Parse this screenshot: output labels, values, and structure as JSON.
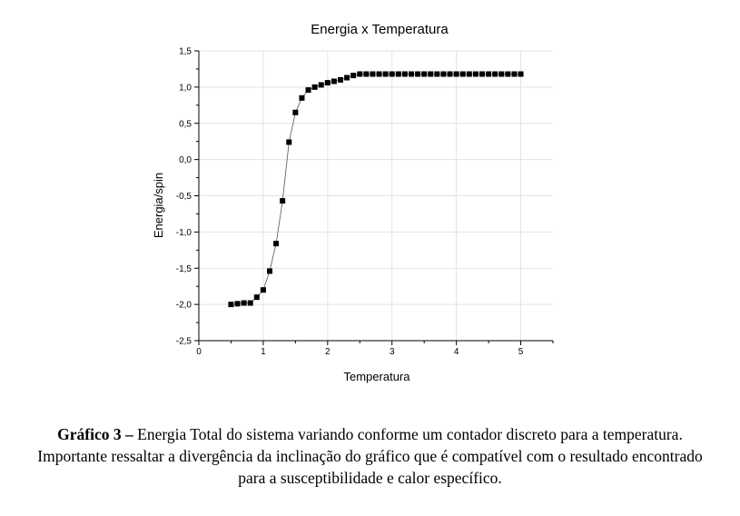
{
  "chart_data": {
    "type": "scatter",
    "title": "Energia x Temperatura",
    "xlabel": "Temperatura",
    "ylabel": "Energia/spin",
    "xlim": [
      0,
      5.5
    ],
    "ylim": [
      -2.5,
      1.5
    ],
    "x_ticks": [
      "0",
      "1",
      "2",
      "3",
      "4",
      "5"
    ],
    "y_ticks": [
      "-2,5",
      "-2,0",
      "-1,5",
      "-1,0",
      "-0,5",
      "0,0",
      "0,5",
      "1,0",
      "1,5"
    ],
    "grid": true,
    "connecting_line": true,
    "marker": "square",
    "series": [
      {
        "x": [
          0.5,
          0.6,
          0.7,
          0.8,
          0.9,
          1.0,
          1.1,
          1.2,
          1.3,
          1.4,
          1.5,
          1.6,
          1.7,
          1.8,
          1.9,
          2.0,
          2.1,
          2.2,
          2.3,
          2.4,
          2.5,
          2.6,
          2.7,
          2.8,
          2.9,
          3.0,
          3.1,
          3.2,
          3.3,
          3.4,
          3.5,
          3.6,
          3.7,
          3.8,
          3.9,
          4.0,
          4.1,
          4.2,
          4.3,
          4.4,
          4.5,
          4.6,
          4.7,
          4.8,
          4.9,
          5.0
        ],
        "y": [
          -2.0,
          -1.99,
          -1.98,
          -1.98,
          -1.9,
          -1.8,
          -1.54,
          -1.16,
          -0.57,
          0.24,
          0.65,
          0.85,
          0.96,
          1.0,
          1.03,
          1.06,
          1.08,
          1.1,
          1.13,
          1.16,
          1.18,
          1.18,
          1.18,
          1.18,
          1.18,
          1.18,
          1.18,
          1.18,
          1.18,
          1.18,
          1.18,
          1.18,
          1.18,
          1.18,
          1.18,
          1.18,
          1.18,
          1.18,
          1.18,
          1.18,
          1.18,
          1.18,
          1.18,
          1.18,
          1.18,
          1.18
        ]
      }
    ]
  },
  "caption": {
    "label": "Gráfico 3 –",
    "text": " Energia Total do sistema variando conforme um contador discreto para a temperatura. Importante ressaltar a divergência da inclinação do gráfico que é compatível com o resultado encontrado para a susceptibilidade e calor específico."
  }
}
